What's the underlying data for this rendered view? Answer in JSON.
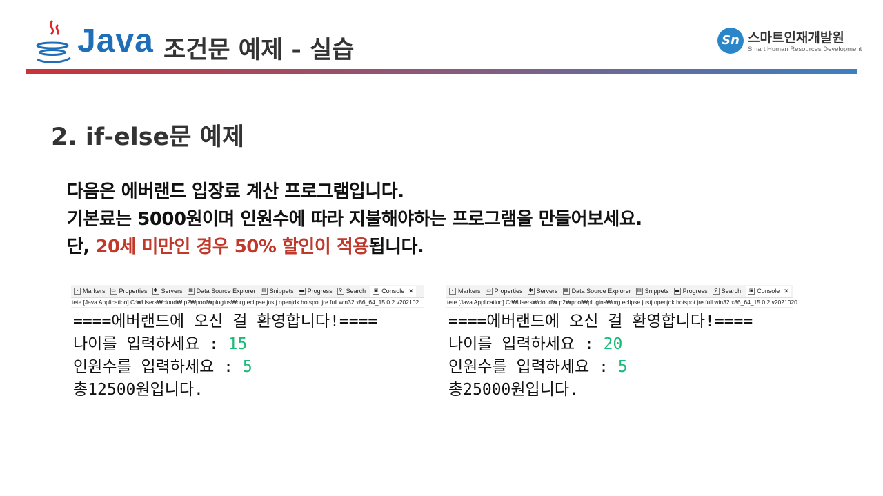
{
  "header": {
    "logo_text": "Java",
    "title": "조건문 예제 - 실습",
    "brand": {
      "mark": "Sn",
      "name": "스마트인재개발원",
      "sub": "Smart Human Resources Development"
    }
  },
  "heading": "2.  if-else문 예제",
  "paragraph": {
    "line1": "다음은 에버랜드 입장료 계산 프로그램입니다.",
    "line2": "기본료는 5000원이며 인원수에 따라 지불해야하는 프로그램을 만들어보세요.",
    "line3_prefix": "단, ",
    "line3_highlight": "20세 미만인 경우 50% 할인이 적용",
    "line3_suffix": "됩니다.",
    "highlight_color": "#c0392b"
  },
  "tabs": [
    {
      "label": "Markers",
      "icon": "markers-icon"
    },
    {
      "label": "Properties",
      "icon": "properties-icon"
    },
    {
      "label": "Servers",
      "icon": "servers-icon"
    },
    {
      "label": "Data Source Explorer",
      "icon": "data-source-icon"
    },
    {
      "label": "Snippets",
      "icon": "snippets-icon"
    },
    {
      "label": "Progress",
      "icon": "progress-icon"
    },
    {
      "label": "Search",
      "icon": "search-icon"
    },
    {
      "label": "Console",
      "icon": "console-icon"
    }
  ],
  "consoles": [
    {
      "path": "tete [Java Application] C:₩Users₩cloud₩.p2₩pool₩plugins₩org.eclipse.justj.openjdk.hotspot.jre.full.win32.x86_64_15.0.2.v202102",
      "welcome": "====에버랜드에 오신 걸 환영합니다!====",
      "age_prompt": "나이를 입력하세요 : ",
      "age": "15",
      "count_prompt": "인원수를 입력하세요 : ",
      "count": "5",
      "result": "총12500원입니다."
    },
    {
      "path": "tete [Java Application] C:₩Users₩cloud₩.p2₩pool₩plugins₩org.eclipse.justj.openjdk.hotspot.jre.full.win32.x86_64_15.0.2.v2021020",
      "welcome": "====에버랜드에 오신 걸 환영합니다!====",
      "age_prompt": "나이를 입력하세요 : ",
      "age": "20",
      "count_prompt": "인원수를 입력하세요 : ",
      "count": "5",
      "result": "총25000원입니다."
    }
  ]
}
